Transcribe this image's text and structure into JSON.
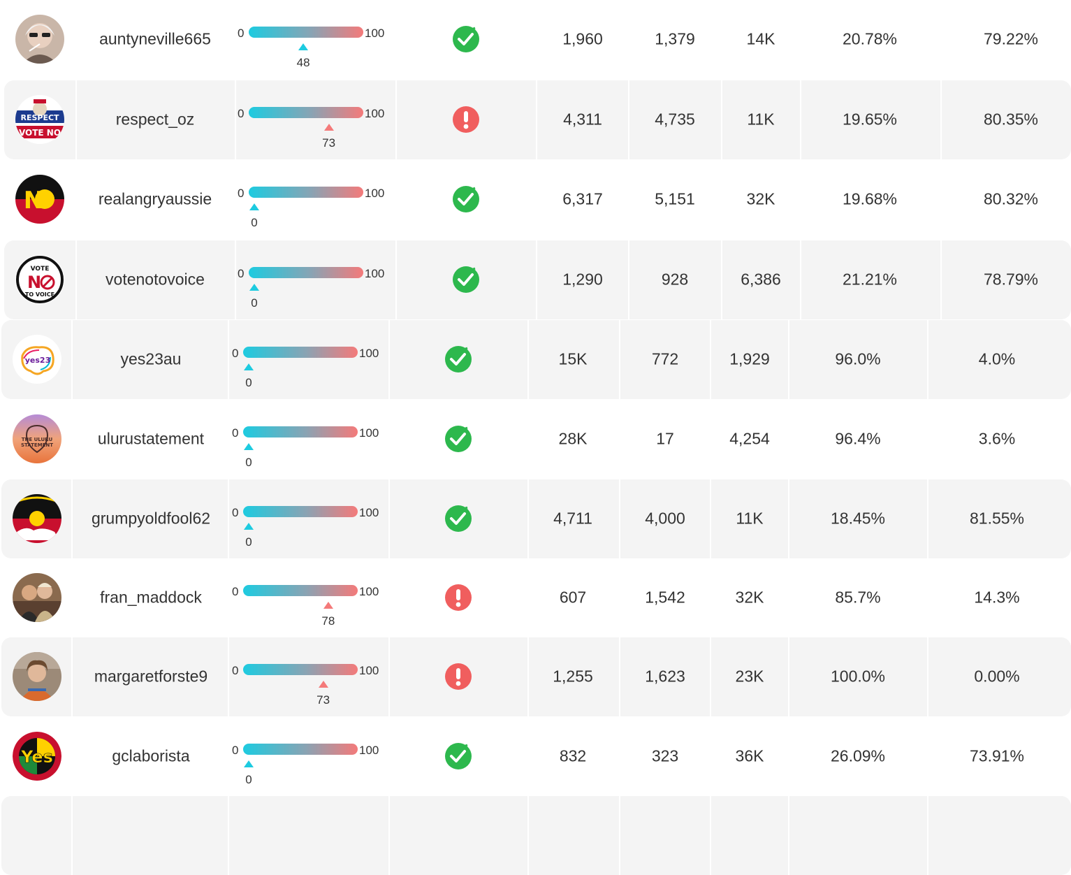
{
  "colors": {
    "gauge_low": "#1dcbe0",
    "gauge_high": "#f47a7a",
    "ok": "#2db84d",
    "alert": "#f05e5e",
    "row_shade": "#f4f4f4"
  },
  "gauge": {
    "min_label": "0",
    "max_label": "100"
  },
  "rows": [
    {
      "username": "auntyneville665",
      "score": 48,
      "score_label": "48",
      "status": "verified-check-icon",
      "col1": "1,960",
      "col2": "1,379",
      "col3": "14K",
      "pct1": "20.78%",
      "pct2": "79.22%",
      "avatar": "portrait-avatar-icon"
    },
    {
      "username": "respect_oz",
      "score": 73,
      "score_label": "73",
      "status": "alert-exclamation-icon",
      "col1": "4,311",
      "col2": "4,735",
      "col3": "11K",
      "pct1": "19.65%",
      "pct2": "80.35%",
      "avatar": "respect-australia-vote-no-logo"
    },
    {
      "username": "realangryaussie",
      "score": 0,
      "score_label": "0",
      "status": "verified-check-icon",
      "col1": "6,317",
      "col2": "5,151",
      "col3": "32K",
      "pct1": "19.68%",
      "pct2": "80.32%",
      "avatar": "no-flag-logo"
    },
    {
      "username": "votenotovoice",
      "score": 0,
      "score_label": "0",
      "status": "verified-check-icon",
      "col1": "1,290",
      "col2": "928",
      "col3": "6,386",
      "pct1": "21.21%",
      "pct2": "78.79%",
      "avatar": "vote-no-to-voice-logo"
    },
    {
      "username": "yes23au",
      "score": 0,
      "score_label": "0",
      "status": "verified-check-icon",
      "col1": "15K",
      "col2": "772",
      "col3": "1,929",
      "pct1": "96.0%",
      "pct2": "4.0%",
      "avatar": "yes23-logo"
    },
    {
      "username": "ulurustatement",
      "score": 0,
      "score_label": "0",
      "status": "verified-check-icon",
      "col1": "28K",
      "col2": "17",
      "col3": "4,254",
      "pct1": "96.4%",
      "pct2": "3.6%",
      "avatar": "uluru-statement-logo"
    },
    {
      "username": "grumpyoldfool62",
      "score": 0,
      "score_label": "0",
      "status": "verified-check-icon",
      "col1": "4,711",
      "col2": "4,000",
      "col3": "11K",
      "pct1": "18.45%",
      "pct2": "81.55%",
      "avatar": "aboriginal-flag-avatar"
    },
    {
      "username": "fran_maddock",
      "score": 78,
      "score_label": "78",
      "status": "alert-exclamation-icon",
      "col1": "607",
      "col2": "1,542",
      "col3": "32K",
      "pct1": "85.7%",
      "pct2": "14.3%",
      "avatar": "photo-two-people-avatar"
    },
    {
      "username": "margaretforste9",
      "score": 73,
      "score_label": "73",
      "status": "alert-exclamation-icon",
      "col1": "1,255",
      "col2": "1,623",
      "col3": "23K",
      "pct1": "100.0%",
      "pct2": "0.00%",
      "avatar": "photo-person-avatar"
    },
    {
      "username": "gclaborista",
      "score": 0,
      "score_label": "0",
      "status": "verified-check-icon",
      "col1": "832",
      "col2": "323",
      "col3": "36K",
      "pct1": "26.09%",
      "pct2": "73.91%",
      "avatar": "yes-badge-logo"
    }
  ]
}
